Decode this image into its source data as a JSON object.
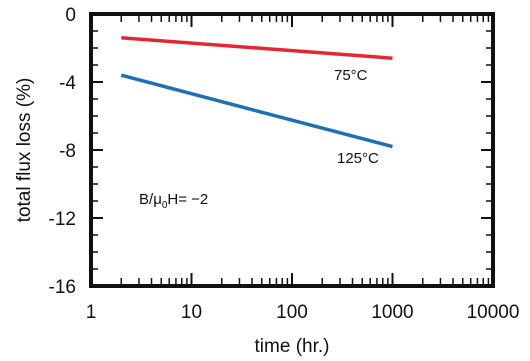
{
  "chart_data": {
    "type": "line",
    "title": "",
    "xlabel": "time (hr.)",
    "ylabel": "total flux loss (%)",
    "xscale": "log",
    "xlim": [
      1,
      10000
    ],
    "ylim": [
      -16,
      0
    ],
    "x_ticks": [
      1,
      10,
      100,
      1000,
      10000
    ],
    "y_ticks": [
      0,
      -4,
      -8,
      -12,
      -16
    ],
    "x_tick_labels": [
      "1",
      "10",
      "100",
      "1000",
      "10000"
    ],
    "y_tick_labels": [
      "0",
      "-4",
      "-8",
      "-12",
      "-16"
    ],
    "grid": false,
    "legend": "none",
    "series": [
      {
        "name": "75°C",
        "color": "#e32636",
        "x": [
          2,
          1000
        ],
        "y": [
          -1.4,
          -2.6
        ]
      },
      {
        "name": "125°C",
        "color": "#1f6fb5",
        "x": [
          2,
          1000
        ],
        "y": [
          -3.6,
          -7.8
        ]
      }
    ],
    "annotations": [
      {
        "text_pre": "B/",
        "text_mu": "μ",
        "text_sub": "0",
        "text_post": "H= −2"
      }
    ]
  }
}
